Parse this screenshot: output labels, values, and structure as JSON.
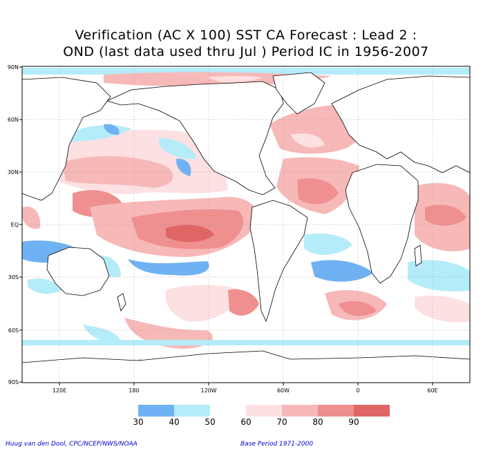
{
  "title": {
    "line1": "Verification (AC X 100) SST CA Forecast : Lead 2 :",
    "line2": "OND (last data used thru Jul ) Period IC in 1956-2007"
  },
  "map": {
    "lat_labels": [
      "90N",
      "60N",
      "30N",
      "EQ",
      "30S",
      "60S",
      "90S"
    ],
    "lon_labels": [
      "120E",
      "180",
      "120W",
      "60W",
      "0",
      "60E"
    ],
    "land_color": "#ffffff",
    "ocean_default": "#ffffff",
    "coastline_color": "#000000",
    "grid": "dotted"
  },
  "legend": {
    "labels": [
      "30",
      "40",
      "50",
      "60",
      "70",
      "80",
      "90"
    ],
    "colors": [
      "#6fb2f4",
      "#b5ecf9",
      "#ffffff",
      "#fde0e2",
      "#f7b8b8",
      "#ef8f8f",
      "#e06565",
      "#e05a5a"
    ]
  },
  "footer": {
    "credit": "Huug van den Dool, CPC/NCEP/NWS/NOAA",
    "base_period": "Base Period 1971-2000"
  }
}
